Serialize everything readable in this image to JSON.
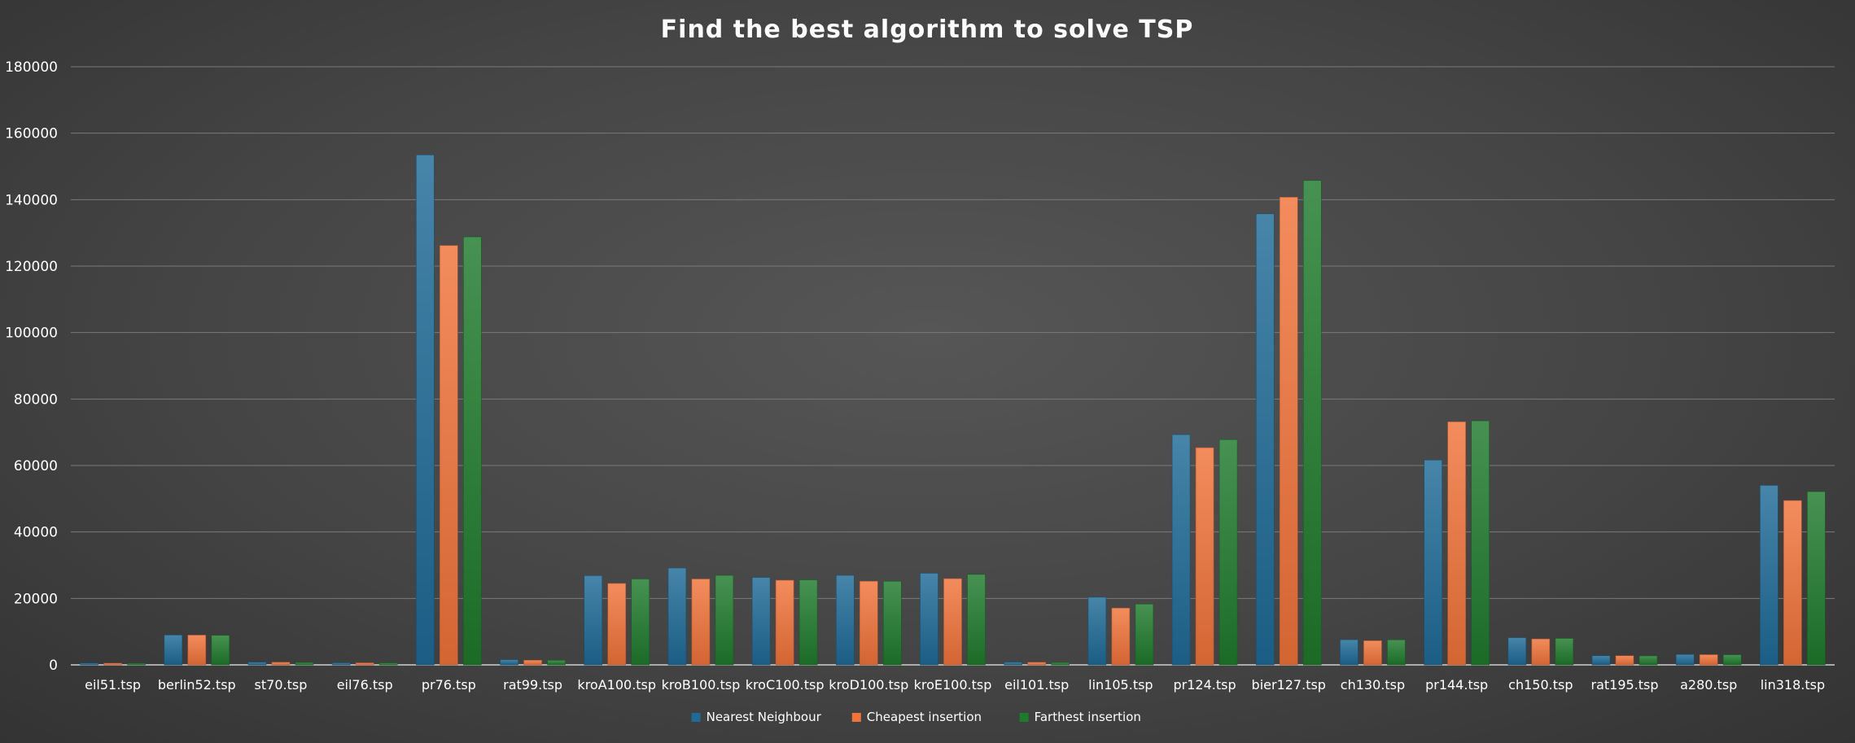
{
  "chart_data": {
    "type": "bar",
    "title": "Find the best algorithm to solve TSP",
    "xlabel": "",
    "ylabel": "",
    "ylim": [
      0,
      180000
    ],
    "yticks": [
      0,
      20000,
      40000,
      60000,
      80000,
      100000,
      120000,
      140000,
      160000,
      180000
    ],
    "grid": true,
    "legend_position": "bottom",
    "categories": [
      "eil51.tsp",
      "berlin52.tsp",
      "st70.tsp",
      "eil76.tsp",
      "pr76.tsp",
      "rat99.tsp",
      "kroA100.tsp",
      "kroB100.tsp",
      "kroC100.tsp",
      "kroD100.tsp",
      "kroE100.tsp",
      "eil101.tsp",
      "lin105.tsp",
      "pr124.tsp",
      "bier127.tsp",
      "ch130.tsp",
      "pr144.tsp",
      "ch150.tsp",
      "rat195.tsp",
      "a280.tsp",
      "lin318.tsp"
    ],
    "series": [
      {
        "name": "Nearest Neighbour",
        "color": "#1f6a96",
        "values": [
          513,
          8980,
          805,
          612,
          153462,
          1564,
          26856,
          29155,
          26327,
          26950,
          27587,
          825,
          20363,
          69299,
          135738,
          7579,
          61651,
          8192,
          2752,
          3148,
          54019
        ]
      },
      {
        "name": "Cheapest insertion",
        "color": "#f0733a",
        "values": [
          491,
          8952,
          797,
          604,
          126215,
          1397,
          24507,
          25840,
          25474,
          25165,
          25952,
          779,
          17094,
          65358,
          140732,
          7271,
          73150,
          7798,
          2747,
          3063,
          49460
        ]
      },
      {
        "name": "Farthest insertion",
        "color": "#1f7a2c",
        "values": [
          461,
          8908,
          711,
          587,
          128799,
          1393,
          25853,
          26940,
          25592,
          25157,
          27226,
          705,
          18301,
          67790,
          145766,
          7543,
          73440,
          7972,
          2703,
          3052,
          52142
        ]
      }
    ]
  }
}
